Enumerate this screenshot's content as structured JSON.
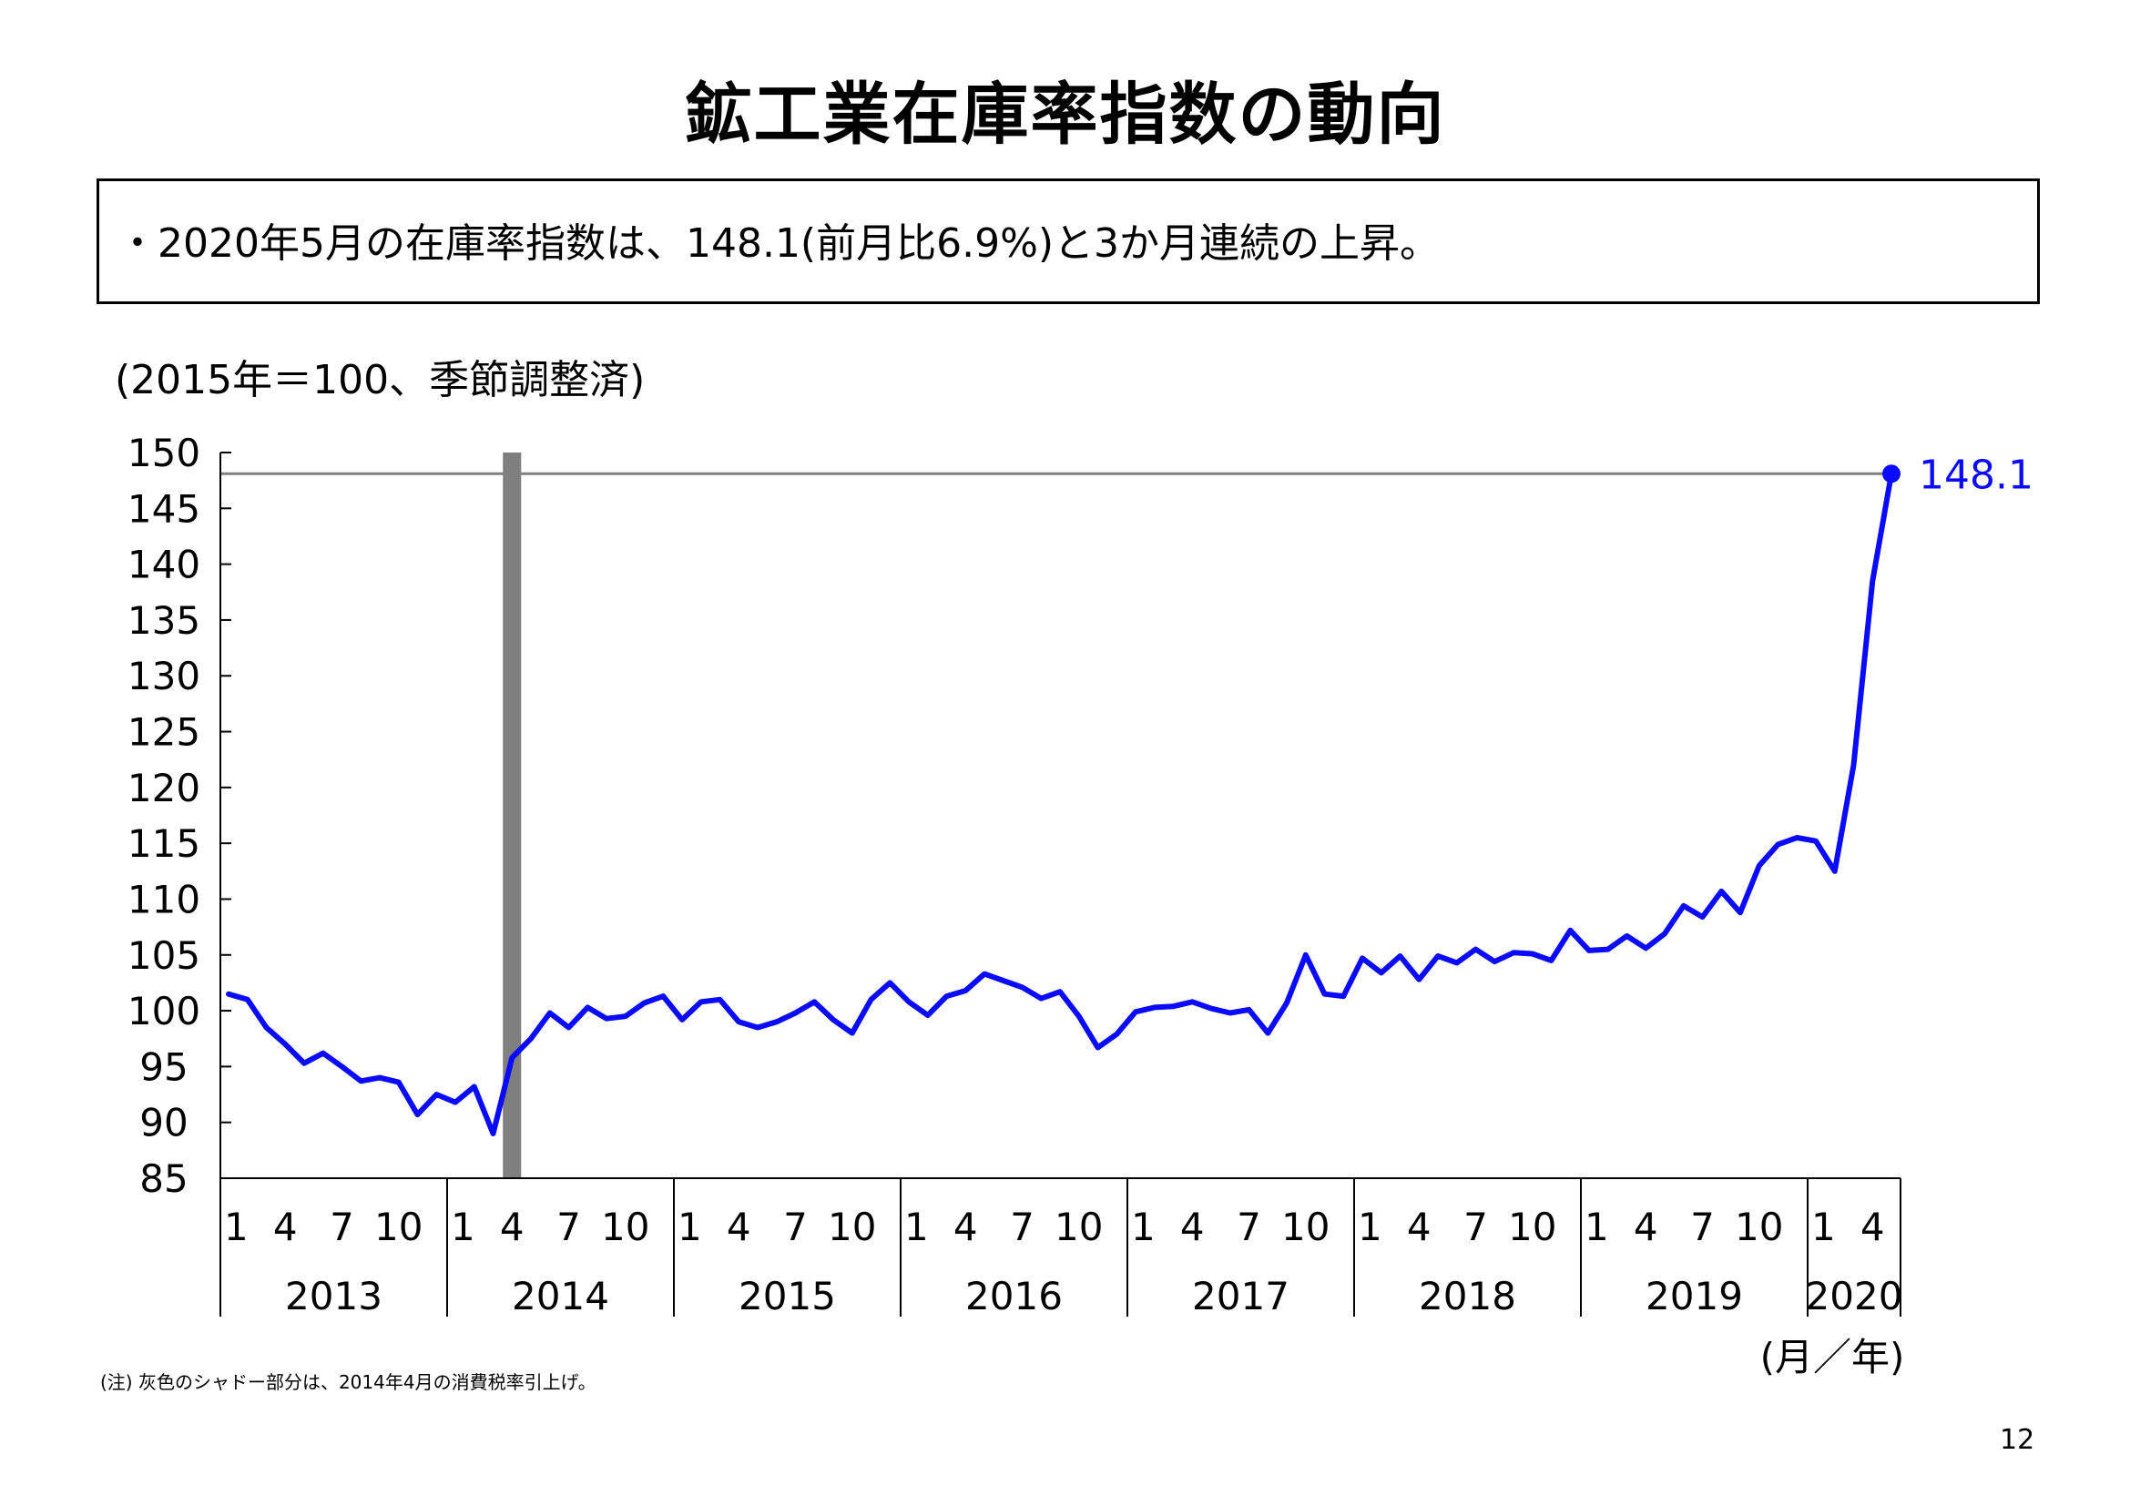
{
  "page": {
    "title": "鉱工業在庫率指数の動向",
    "summary": "・2020年5月の在庫率指数は、148.1(前月比6.9%)と3か月連続の上昇。",
    "unit_label": "(2015年＝100、季節調整済)",
    "note": "(注) 灰色のシャドー部分は、2014年4月の消費税率引上げ。",
    "page_number": "12"
  },
  "colors": {
    "line": "#0a0aff",
    "shade": "#7f7f7f",
    "reference_line": "#808080",
    "axis": "#000000"
  },
  "chart_data": {
    "type": "line",
    "title": "",
    "xlabel": "(月／年)",
    "ylabel": "",
    "ylim": [
      85,
      150
    ],
    "y_ticks": [
      85,
      90,
      95,
      100,
      105,
      110,
      115,
      120,
      125,
      130,
      135,
      140,
      145,
      150
    ],
    "grid": false,
    "year_labels": [
      "2013",
      "2014",
      "2015",
      "2016",
      "2017",
      "2018",
      "2019",
      "2020"
    ],
    "month_tick_labels": [
      "1",
      "4",
      "7",
      "10"
    ],
    "shade": {
      "start": "2014-04",
      "end": "2014-04"
    },
    "reference_line": 148.1,
    "last_point_label": "148.1",
    "series": [
      {
        "start": "2013-01",
        "values": [
          101.5,
          101.0,
          98.5,
          97.0,
          95.3,
          96.2,
          95.0,
          93.7,
          94.0,
          93.6,
          90.7,
          92.5,
          91.8,
          93.2,
          89.0,
          95.8,
          97.5,
          99.8,
          98.5,
          100.3,
          99.3,
          99.5,
          100.7,
          101.3,
          99.2,
          100.8,
          101.0,
          99.0,
          98.5,
          99.0,
          99.8,
          100.8,
          99.2,
          98.0,
          101.0,
          102.5,
          100.8,
          99.6,
          101.3,
          101.8,
          103.3,
          102.7,
          102.1,
          101.1,
          101.7,
          99.5,
          96.7,
          97.9,
          99.9,
          100.3,
          100.4,
          100.8,
          100.2,
          99.8,
          100.1,
          98.0,
          100.7,
          105.0,
          101.5,
          101.3,
          104.7,
          103.4,
          104.9,
          102.8,
          104.9,
          104.3,
          105.5,
          104.4,
          105.2,
          105.1,
          104.5,
          107.2,
          105.4,
          105.5,
          106.7,
          105.6,
          106.9,
          109.4,
          108.4,
          110.7,
          108.8,
          113.0,
          114.9,
          115.5,
          115.2,
          112.5,
          122.0,
          138.5,
          148.1
        ]
      }
    ]
  }
}
